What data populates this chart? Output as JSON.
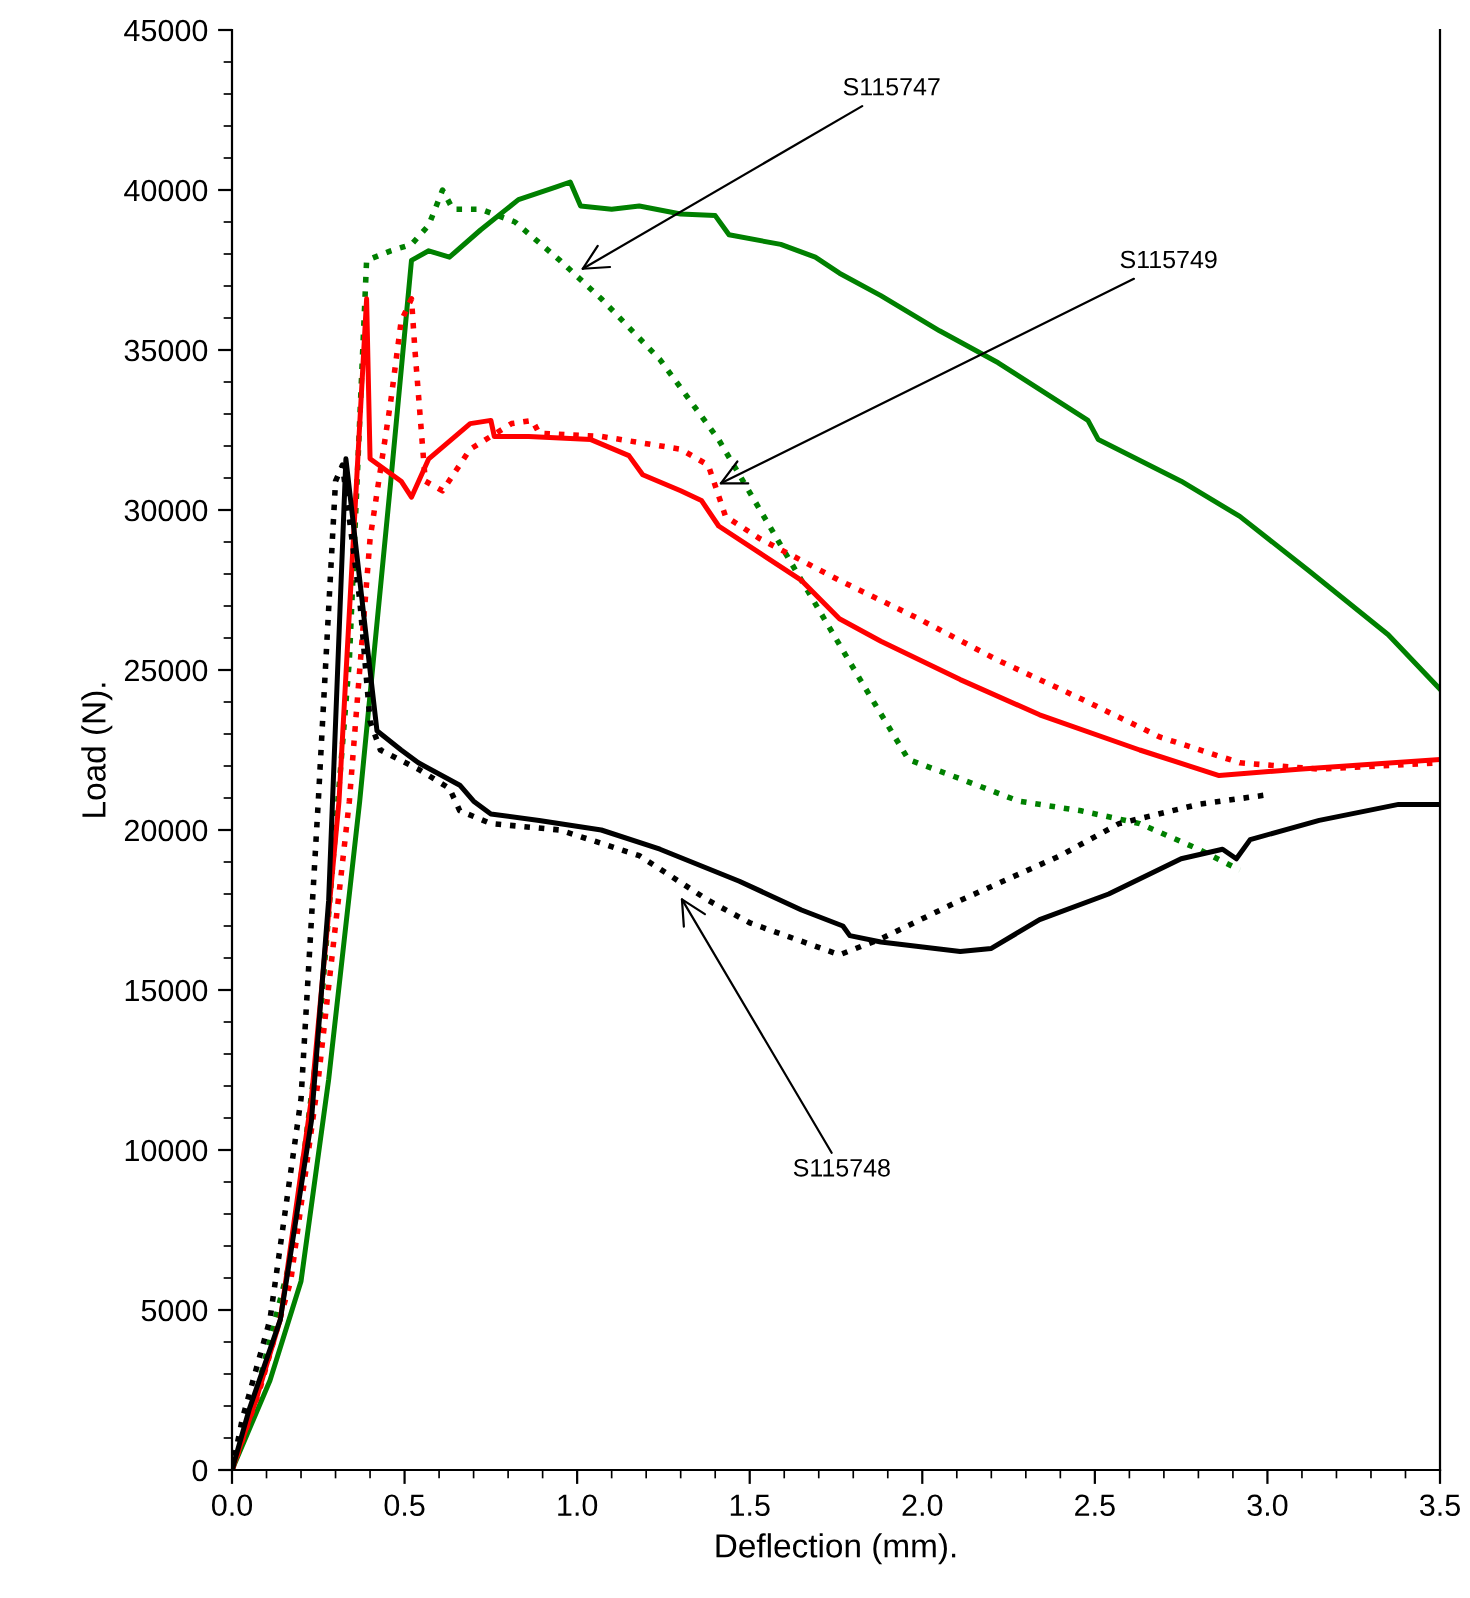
{
  "chart_data": {
    "type": "line",
    "xlabel": "Deflection (mm).",
    "ylabel": "Load (N).",
    "xlim": [
      0,
      3.5
    ],
    "ylim": [
      0,
      45000
    ],
    "xticks": [
      {
        "value": 0,
        "label": "0.0"
      },
      {
        "value": 0.5,
        "label": "0.5"
      },
      {
        "value": 1,
        "label": "1.0"
      },
      {
        "value": 1.5,
        "label": "1.5"
      },
      {
        "value": 2,
        "label": "2.0"
      },
      {
        "value": 2.5,
        "label": "2.5"
      },
      {
        "value": 3,
        "label": "3.0"
      },
      {
        "value": 3.5,
        "label": "3.5"
      }
    ],
    "yticks": [
      0,
      5000,
      10000,
      15000,
      20000,
      25000,
      30000,
      35000,
      40000,
      45000
    ],
    "series": [
      {
        "color": "#008000",
        "line_style": "solid",
        "x": [
          0,
          0.11,
          0.2,
          0.28,
          0.37,
          0.46,
          0.52,
          0.57,
          0.63,
          0.72,
          0.83,
          0.94,
          0.98,
          1.01,
          1.1,
          1.18,
          1.3,
          1.4,
          1.44,
          1.59,
          1.69,
          1.76,
          1.88,
          2.05,
          2.22,
          2.48,
          2.51,
          2.75,
          2.92,
          3.12,
          3.35,
          3.5
        ],
        "values": [
          0,
          2800,
          5900,
          12200,
          20900,
          30900,
          37800,
          38100,
          37900,
          38750,
          39700,
          40100,
          40250,
          39500,
          39400,
          39500,
          39250,
          39200,
          38600,
          38300,
          37900,
          37400,
          36700,
          35600,
          34600,
          32800,
          32200,
          30900,
          29800,
          28100,
          26100,
          24400
        ]
      },
      {
        "color": "#008000",
        "line_style": "dotted",
        "x": [
          0,
          0.08,
          0.17,
          0.25,
          0.34,
          0.39,
          0.46,
          0.52,
          0.57,
          0.61,
          0.64,
          0.72,
          0.82,
          0.95,
          1.07,
          1.24,
          1.41,
          1.53,
          1.65,
          1.82,
          1.96,
          2.11,
          2.28,
          2.46,
          2.63,
          2.8,
          2.92
        ],
        "values": [
          0,
          2800,
          6600,
          13400,
          25300,
          37800,
          38100,
          38300,
          38900,
          40000,
          39400,
          39400,
          39000,
          37800,
          36600,
          34700,
          32200,
          30000,
          27800,
          24700,
          22200,
          21600,
          20900,
          20600,
          20200,
          19400,
          18750
        ]
      },
      {
        "color": "#ff0000",
        "line_style": "solid",
        "x": [
          0,
          0.07,
          0.14,
          0.23,
          0.31,
          0.39,
          0.4,
          0.49,
          0.52,
          0.57,
          0.69,
          0.75,
          0.76,
          0.86,
          1.04,
          1.15,
          1.19,
          1.3,
          1.36,
          1.41,
          1.65,
          1.76,
          1.88,
          2.11,
          2.34,
          2.63,
          2.86,
          3.09,
          3.5
        ],
        "values": [
          0,
          2200,
          4700,
          11600,
          20900,
          36600,
          31600,
          30900,
          30400,
          31600,
          32700,
          32800,
          32300,
          32300,
          32200,
          31700,
          31100,
          30600,
          30300,
          29500,
          27800,
          26600,
          25900,
          24700,
          23600,
          22500,
          21700,
          21900,
          22200
        ]
      },
      {
        "color": "#ff0000",
        "line_style": "dotted",
        "x": [
          0,
          0.08,
          0.17,
          0.25,
          0.34,
          0.4,
          0.46,
          0.49,
          0.52,
          0.53,
          0.56,
          0.61,
          0.69,
          0.81,
          0.87,
          0.89,
          1.07,
          1.3,
          1.38,
          1.43,
          1.53,
          1.76,
          1.99,
          2.22,
          2.46,
          2.69,
          2.92,
          3.15,
          3.5
        ],
        "values": [
          0,
          2500,
          5900,
          12200,
          20900,
          29100,
          33400,
          35900,
          36600,
          35000,
          30900,
          30600,
          31900,
          32700,
          32800,
          32400,
          32300,
          31900,
          31400,
          29800,
          29100,
          27800,
          26600,
          25300,
          24100,
          22900,
          22100,
          21900,
          22100
        ]
      },
      {
        "color": "#000000",
        "line_style": "solid",
        "x": [
          0,
          0.05,
          0.14,
          0.23,
          0.28,
          0.33,
          0.42,
          0.49,
          0.54,
          0.66,
          0.7,
          0.75,
          0.89,
          1.07,
          1.24,
          1.47,
          1.65,
          1.77,
          1.79,
          1.88,
          2.11,
          2.2,
          2.34,
          2.54,
          2.75,
          2.87,
          2.91,
          2.95,
          3.15,
          3.38,
          3.5
        ],
        "values": [
          0,
          1900,
          4700,
          10900,
          17800,
          31600,
          23100,
          22500,
          22100,
          21400,
          20900,
          20500,
          20300,
          20000,
          19400,
          18400,
          17500,
          17000,
          16700,
          16500,
          16200,
          16300,
          17200,
          18000,
          19100,
          19400,
          19100,
          19700,
          20300,
          20800,
          20800
        ]
      },
      {
        "color": "#000000",
        "line_style": "dotted",
        "x": [
          0,
          0.03,
          0.11,
          0.2,
          0.25,
          0.3,
          0.32,
          0.37,
          0.4,
          0.43,
          0.54,
          0.63,
          0.66,
          0.75,
          0.95,
          1.18,
          1.38,
          1.5,
          1.76,
          1.88,
          2.11,
          2.4,
          2.57,
          2.8,
          3.0
        ],
        "values": [
          0,
          1600,
          4700,
          11600,
          20900,
          30900,
          31400,
          27200,
          23400,
          22500,
          21900,
          21300,
          20600,
          20200,
          20000,
          19200,
          17800,
          17100,
          16100,
          16600,
          17800,
          19200,
          20200,
          20800,
          21100
        ]
      }
    ],
    "annotations": [
      {
        "text": "S115747",
        "x": 1.01,
        "y": 37500
      },
      {
        "text": "S115749",
        "x": 1.41,
        "y": 30800
      },
      {
        "text": "S115748",
        "x": 1.3,
        "y": 17900
      }
    ]
  }
}
